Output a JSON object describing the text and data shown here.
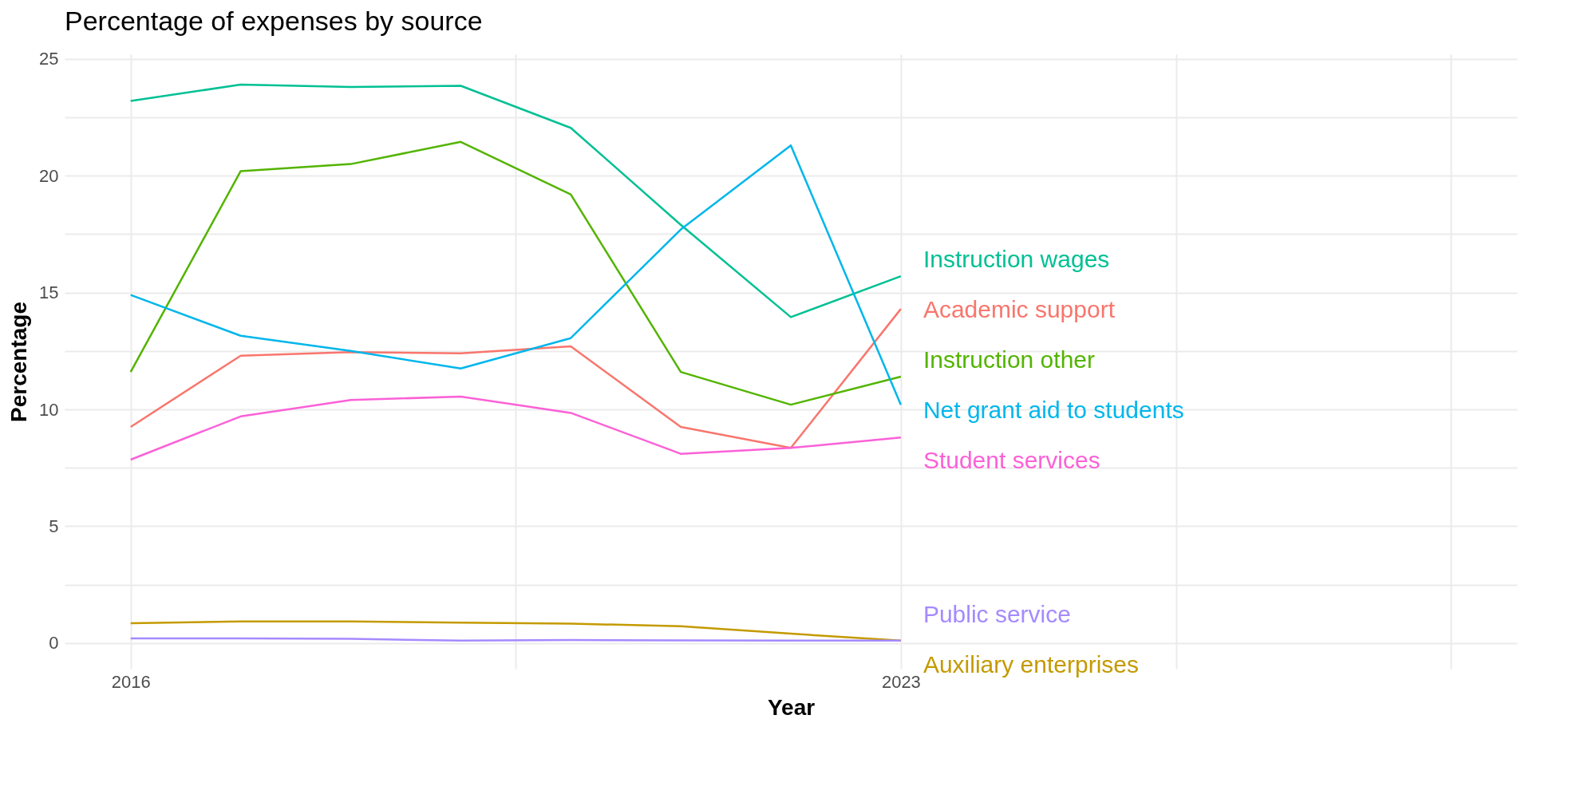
{
  "chart_data": {
    "type": "line",
    "title": "Percentage of expenses by source",
    "xlabel": "Year",
    "ylabel": "Percentage",
    "x": [
      2016,
      2017,
      2018,
      2019,
      2020,
      2021,
      2022,
      2023
    ],
    "xlim": [
      2015.4,
      2028.6
    ],
    "xticks": [
      2016,
      {
        "value": 2019.5,
        "label": null
      },
      2023,
      {
        "value": 2025.5,
        "label": null
      },
      {
        "value": 2028,
        "label": null
      }
    ],
    "ylim": [
      -1.1,
      25.2
    ],
    "yticks": [
      0,
      {
        "value": 2.5,
        "label": null
      },
      5,
      {
        "value": 7.5,
        "label": null
      },
      10,
      {
        "value": 12.5,
        "label": null
      },
      15,
      {
        "value": 17.5,
        "label": null
      },
      20,
      {
        "value": 22.5,
        "label": null
      },
      25
    ],
    "grid": true,
    "series": [
      {
        "name": "Academic support",
        "color": "#f8766d",
        "values": [
          9.25,
          12.3,
          12.45,
          12.4,
          12.7,
          9.25,
          8.35,
          14.3
        ]
      },
      {
        "name": "Auxiliary enterprises",
        "color": "#c49a00",
        "values": [
          0.85,
          0.92,
          0.92,
          0.87,
          0.83,
          0.72,
          0.4,
          0.1
        ]
      },
      {
        "name": "Instruction other",
        "color": "#53b400",
        "values": [
          11.6,
          20.2,
          20.5,
          21.45,
          19.2,
          11.6,
          10.2,
          11.4
        ]
      },
      {
        "name": "Instruction wages",
        "color": "#00c094",
        "values": [
          23.2,
          23.9,
          23.8,
          23.85,
          22.05,
          17.9,
          13.95,
          15.7
        ]
      },
      {
        "name": "Net grant aid to students",
        "color": "#00b6eb",
        "values": [
          14.9,
          13.15,
          12.5,
          11.75,
          13.05,
          17.7,
          21.3,
          10.2
        ]
      },
      {
        "name": "Public service",
        "color": "#a58aff",
        "values": [
          0.2,
          0.2,
          0.18,
          0.1,
          0.13,
          0.11,
          0.1,
          0.1
        ]
      },
      {
        "name": "Student services",
        "color": "#fb61d7",
        "values": [
          7.85,
          9.7,
          10.4,
          10.55,
          9.85,
          8.1,
          8.35,
          8.8
        ]
      }
    ]
  }
}
